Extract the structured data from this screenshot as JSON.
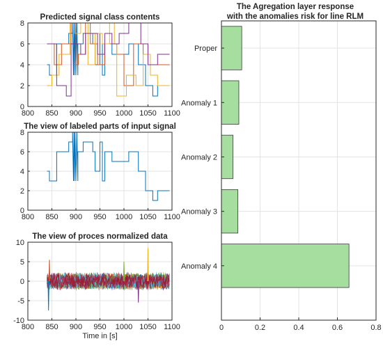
{
  "chart_data": [
    {
      "type": "line",
      "title": "Predicted signal class contents",
      "xlabel": "",
      "ylabel": "",
      "xlim": [
        800,
        1100
      ],
      "ylim": [
        0,
        8
      ],
      "xticks": [
        800,
        850,
        900,
        950,
        1000,
        1050,
        1100
      ],
      "yticks": [
        0,
        2,
        4,
        6,
        8
      ],
      "grid": true,
      "series": [
        {
          "color": "#0072BD",
          "x": [
            840,
            845,
            845,
            860,
            860,
            885,
            885,
            893,
            893,
            895,
            896,
            897,
            898,
            900,
            902,
            904,
            904,
            915,
            915,
            935,
            935,
            940,
            940,
            950,
            950,
            955,
            955,
            960,
            960,
            975,
            975,
            1010,
            1010,
            1030,
            1030,
            1045,
            1045,
            1060,
            1060,
            1070,
            1070,
            1095
          ],
          "y": [
            4,
            4,
            3,
            3,
            6,
            6,
            7,
            7,
            8,
            3,
            8,
            3,
            8,
            3,
            8,
            3,
            6,
            6,
            7,
            7,
            6,
            6,
            4,
            4,
            7,
            7,
            3,
            3,
            6,
            6,
            5,
            5,
            6,
            6,
            4,
            4,
            2,
            2,
            1,
            1,
            2,
            2
          ]
        },
        {
          "color": "#D95319",
          "x": [
            840,
            855,
            855,
            870,
            870,
            890,
            890,
            900,
            900,
            905,
            905,
            920,
            920,
            930,
            930,
            945,
            945,
            960,
            960,
            985,
            985,
            1000,
            1000,
            1020,
            1020,
            1040,
            1040,
            1050,
            1050,
            1095
          ],
          "y": [
            6,
            6,
            4,
            4,
            6,
            6,
            8,
            8,
            4,
            4,
            5,
            5,
            8,
            8,
            6,
            6,
            4,
            4,
            6,
            6,
            5,
            5,
            2,
            2,
            6,
            6,
            5,
            5,
            4,
            4
          ]
        },
        {
          "color": "#EDB120",
          "x": [
            840,
            850,
            850,
            865,
            865,
            888,
            888,
            898,
            898,
            910,
            910,
            925,
            925,
            940,
            940,
            955,
            955,
            970,
            970,
            980,
            980,
            985,
            985,
            1005,
            1005,
            1025,
            1025,
            1040,
            1040,
            1055,
            1055,
            1070,
            1070,
            1095
          ],
          "y": [
            2,
            2,
            3,
            3,
            5,
            5,
            8,
            8,
            7,
            7,
            8,
            8,
            4,
            4,
            7,
            7,
            6,
            6,
            8,
            8,
            6,
            6,
            1,
            1,
            3,
            3,
            2,
            2,
            5,
            5,
            3,
            3,
            2,
            2
          ]
        },
        {
          "color": "#7E2F8E",
          "x": [
            840,
            860,
            860,
            880,
            880,
            890,
            890,
            910,
            910,
            920,
            920,
            945,
            945,
            960,
            960,
            975,
            975,
            990,
            990,
            1010,
            1010,
            1035,
            1035,
            1050,
            1050,
            1070,
            1070,
            1095
          ],
          "y": [
            6,
            6,
            2,
            2,
            1,
            1,
            6,
            6,
            5,
            5,
            7,
            7,
            5,
            5,
            7,
            7,
            6,
            6,
            7,
            7,
            8,
            8,
            6,
            6,
            4,
            4,
            5,
            5
          ]
        }
      ]
    },
    {
      "type": "line",
      "title": "The view of labeled parts of input signal",
      "xlabel": "",
      "ylabel": "",
      "xlim": [
        800,
        1100
      ],
      "ylim": [
        0,
        8
      ],
      "xticks": [
        800,
        850,
        900,
        950,
        1000,
        1050,
        1100
      ],
      "yticks": [
        0,
        2,
        4,
        6,
        8
      ],
      "grid": true,
      "series": [
        {
          "color": "#0072BD",
          "x": [
            840,
            845,
            845,
            860,
            860,
            885,
            885,
            893,
            893,
            895,
            896,
            897,
            898,
            900,
            902,
            904,
            904,
            915,
            915,
            935,
            935,
            940,
            940,
            950,
            950,
            955,
            955,
            960,
            960,
            975,
            975,
            1010,
            1010,
            1030,
            1030,
            1045,
            1045,
            1060,
            1060,
            1070,
            1070,
            1095
          ],
          "y": [
            4,
            4,
            3,
            3,
            6,
            6,
            7,
            7,
            8,
            3,
            8,
            3,
            8,
            3,
            8,
            3,
            6,
            6,
            7,
            7,
            6,
            6,
            4,
            4,
            7,
            7,
            3,
            3,
            6,
            6,
            5,
            5,
            6,
            6,
            4,
            4,
            2,
            2,
            1,
            1,
            2,
            2
          ]
        }
      ]
    },
    {
      "type": "line",
      "title": "The view of proces normalized data",
      "xlabel": "Time in [s]",
      "ylabel": "",
      "xlim": [
        800,
        1100
      ],
      "ylim": [
        -10,
        10
      ],
      "xticks": [
        800,
        850,
        900,
        950,
        1000,
        1050,
        1100
      ],
      "yticks": [
        -10,
        -5,
        0,
        5,
        10
      ],
      "grid": true,
      "noise": {
        "x_range": [
          840,
          1095
        ],
        "typical_amplitude": 2,
        "spikes": [
          {
            "x": 843,
            "y": -7.5
          },
          {
            "x": 845,
            "y": 5.5
          },
          {
            "x": 1050,
            "y": 8.5
          },
          {
            "x": 1030,
            "y": -5.5
          },
          {
            "x": 1000,
            "y": 5
          }
        ],
        "colors": [
          "#0072BD",
          "#D95319",
          "#EDB120",
          "#7E2F8E",
          "#77AC30",
          "#4DBEEE",
          "#A2142F"
        ]
      }
    },
    {
      "type": "bar",
      "orientation": "horizontal",
      "title": "The Agregation layer response",
      "subtitle": "with the anomalies risk for line RLM",
      "categories": [
        "Proper",
        "Anomaly 1",
        "Anomaly 2",
        "Anomaly 3",
        "Anomaly 4"
      ],
      "values": [
        0.105,
        0.09,
        0.06,
        0.085,
        0.66
      ],
      "xlim": [
        0,
        0.8
      ],
      "xticks": [
        0,
        0.2,
        0.4,
        0.6,
        0.8
      ],
      "ylim": [
        0.5,
        6
      ],
      "bar_color": "#a6dea0",
      "edge_color": "#3a3a3a",
      "grid": true
    }
  ]
}
